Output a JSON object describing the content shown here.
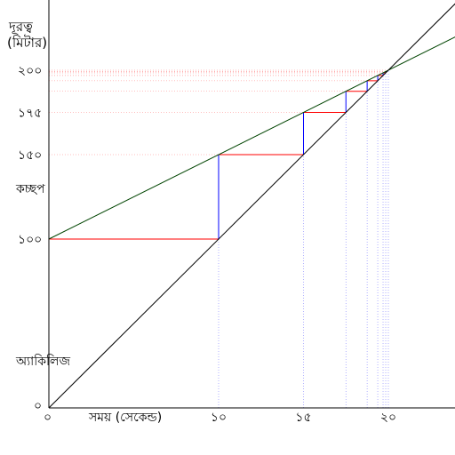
{
  "chart_data": {
    "type": "line",
    "title": "",
    "ylabel_line1": "দূরত্ব",
    "ylabel_line2": "(মিটার)",
    "xlabel": "সময় (সেকেন্ড)",
    "xlim": [
      0,
      24
    ],
    "ylim": [
      0,
      215
    ],
    "x_ticks": [
      {
        "value": 0,
        "label": "০"
      },
      {
        "value": 10,
        "label": "১০"
      },
      {
        "value": 15,
        "label": "১৫"
      },
      {
        "value": 20,
        "label": "২০"
      }
    ],
    "y_ticks": [
      {
        "value": 0,
        "label": "০"
      },
      {
        "value": 100,
        "label": "১০০"
      },
      {
        "value": 150,
        "label": "১৫০"
      },
      {
        "value": 175,
        "label": "১৭৫"
      },
      {
        "value": 200,
        "label": "২০০"
      }
    ],
    "series": [
      {
        "name": "কচ্ছপ",
        "color": "#004400",
        "x": [
          0,
          24
        ],
        "y": [
          100,
          220
        ],
        "label_y": 130
      },
      {
        "name": "অ্যাকিলিজ",
        "color": "#000000",
        "x": [
          0,
          24
        ],
        "y": [
          0,
          240
        ],
        "label_y": 28
      }
    ],
    "staircase_times": [
      0,
      10,
      15,
      17.5,
      18.75,
      19.375,
      19.6875,
      19.84375
    ],
    "staircase_distances": [
      100,
      150,
      175,
      187.5,
      193.75,
      196.875,
      198.4375,
      199.21875
    ],
    "convergence": {
      "x": 20,
      "y": 200
    },
    "colors": {
      "step_horizontal": "#ff0000",
      "step_vertical": "#0000ff",
      "guide_red": "#ff8080",
      "guide_blue": "#8080ff"
    }
  }
}
